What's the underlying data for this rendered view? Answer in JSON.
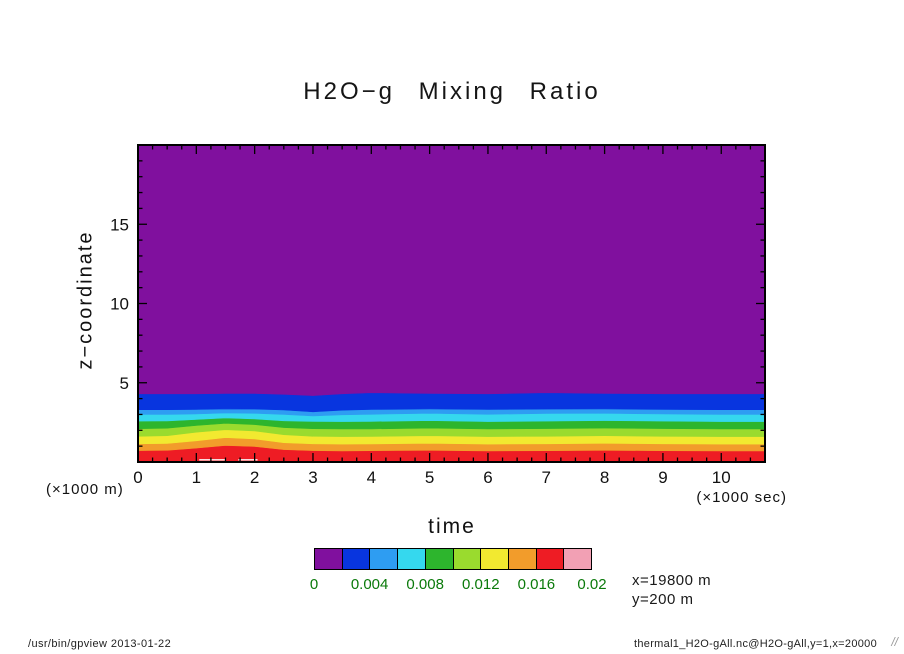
{
  "title": "H2O−g Mixing Ratio",
  "axes": {
    "x": {
      "label": "time",
      "unit_note": "(×1000 sec)",
      "min": 0,
      "max": 10.75,
      "ticks": [
        0,
        1,
        2,
        3,
        4,
        5,
        6,
        7,
        8,
        9,
        10
      ],
      "minor_step": 0.25
    },
    "y": {
      "label": "z−coordinate",
      "unit_note": "(×1000 m)",
      "min": 0,
      "max": 20,
      "ticks": [
        5,
        10,
        15
      ],
      "minor_step": 1
    }
  },
  "colorbar": {
    "colors": [
      "#80109E",
      "#0835DF",
      "#2E9DF2",
      "#35D8EE",
      "#2DB52D",
      "#9ADB2E",
      "#F2E930",
      "#F29C2B",
      "#EE1C24",
      "#F2A0B4"
    ],
    "labels": [
      "0",
      "0.004",
      "0.008",
      "0.012",
      "0.016",
      "0.02"
    ],
    "label_color": "#0A7A0A"
  },
  "annotations": {
    "x_info": "x=19800 m",
    "y_info": "y=200 m"
  },
  "footer": {
    "left": "/usr/bin/gpview  2013-01-22",
    "right": "thermal1_H2O-gAll.nc@H2O-gAll,y=1,x=20000",
    "corner": "//"
  },
  "chart_data": {
    "type": "heatmap",
    "title": "H2O−g Mixing Ratio",
    "xlabel": "time",
    "x_unit": "×1000 sec",
    "ylabel": "z−coordinate",
    "y_unit": "×1000 m",
    "xlim": [
      0,
      10.75
    ],
    "ylim": [
      0,
      20
    ],
    "x_ticks": [
      0,
      1,
      2,
      3,
      4,
      5,
      6,
      7,
      8,
      9,
      10
    ],
    "y_ticks": [
      5,
      10,
      15
    ],
    "x_minor_step": 0.25,
    "y_minor_step": 1,
    "levels": [
      0,
      0.002,
      0.004,
      0.006,
      0.008,
      0.01,
      0.012,
      0.014,
      0.016,
      0.018,
      0.02
    ],
    "colors": [
      "#80109E",
      "#0835DF",
      "#2E9DF2",
      "#35D8EE",
      "#2DB52D",
      "#9ADB2E",
      "#F2E930",
      "#F29C2B",
      "#EE1C24",
      "#F2A0B4"
    ],
    "legend_labels": [
      "0",
      "0.004",
      "0.008",
      "0.012",
      "0.016",
      "0.02"
    ],
    "annotation": [
      "x=19800 m",
      "y=200 m"
    ],
    "profile_x": [
      0,
      0.5,
      1,
      1.5,
      2,
      2.5,
      3,
      3.5,
      4,
      5,
      6,
      7,
      8,
      9,
      10,
      10.75
    ],
    "bands": [
      {
        "value_range": "0.016-0.018",
        "color": "#EE1C24",
        "top": [
          0.72,
          0.74,
          0.88,
          1.04,
          0.98,
          0.78,
          0.72,
          0.7,
          0.71,
          0.74,
          0.7,
          0.71,
          0.74,
          0.71,
          0.7,
          0.7
        ]
      },
      {
        "value_range": "0.014-0.016",
        "color": "#F29C2B",
        "top": [
          1.15,
          1.17,
          1.34,
          1.54,
          1.46,
          1.22,
          1.15,
          1.13,
          1.14,
          1.18,
          1.13,
          1.15,
          1.18,
          1.15,
          1.13,
          1.13
        ]
      },
      {
        "value_range": "0.012-0.014",
        "color": "#F2E930",
        "top": [
          1.62,
          1.66,
          1.88,
          2.04,
          1.96,
          1.72,
          1.62,
          1.6,
          1.61,
          1.66,
          1.6,
          1.62,
          1.66,
          1.62,
          1.6,
          1.6
        ]
      },
      {
        "value_range": "0.010-0.012",
        "color": "#9ADB2E",
        "top": [
          2.1,
          2.13,
          2.3,
          2.44,
          2.36,
          2.17,
          2.1,
          2.08,
          2.09,
          2.14,
          2.08,
          2.11,
          2.14,
          2.11,
          2.08,
          2.08
        ]
      },
      {
        "value_range": "0.008-0.010",
        "color": "#2DB52D",
        "top": [
          2.58,
          2.59,
          2.68,
          2.78,
          2.72,
          2.6,
          2.56,
          2.55,
          2.56,
          2.61,
          2.55,
          2.58,
          2.61,
          2.58,
          2.55,
          2.55
        ]
      },
      {
        "value_range": "0.006-0.008",
        "color": "#35D8EE",
        "top": [
          3.0,
          3.0,
          3.03,
          3.09,
          3.07,
          3.0,
          2.91,
          2.98,
          3.01,
          3.07,
          3.01,
          3.06,
          3.07,
          3.03,
          3.0,
          3.0
        ]
      },
      {
        "value_range": "0.004-0.006",
        "color": "#2E9DF2",
        "top": [
          3.3,
          3.3,
          3.31,
          3.35,
          3.34,
          3.28,
          3.17,
          3.27,
          3.31,
          3.35,
          3.31,
          3.34,
          3.35,
          3.32,
          3.3,
          3.3
        ]
      },
      {
        "value_range": "0.002-0.004",
        "color": "#0835DF",
        "top": [
          4.3,
          4.3,
          4.3,
          4.32,
          4.32,
          4.27,
          4.19,
          4.3,
          4.37,
          4.33,
          4.3,
          4.37,
          4.33,
          4.3,
          4.3,
          4.3
        ]
      },
      {
        "value_range": "0.000-0.002",
        "color": "#80109E",
        "top": 20
      }
    ],
    "surface_marks": {
      "color": "#FFFFFF",
      "z_height": 0.18,
      "spans": [
        {
          "x0": 1.05,
          "x1": 1.5
        },
        {
          "x0": 1.72,
          "x1": 2.05
        }
      ]
    }
  }
}
